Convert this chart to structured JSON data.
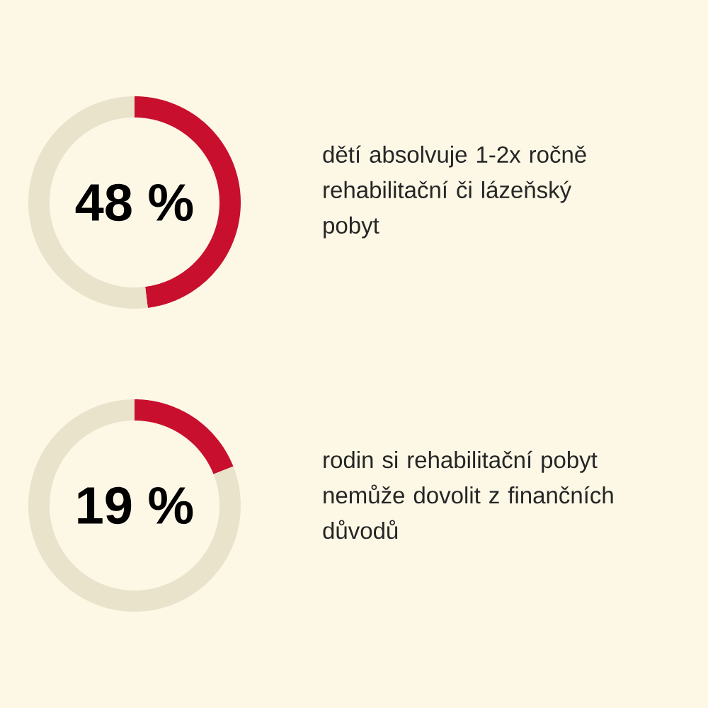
{
  "chart_data": [
    {
      "type": "donut",
      "title": "dětí absolvuje 1-2x ročně rehabilitační či lázeňský pobyt",
      "categories": [
        null,
        null
      ],
      "values": [
        48,
        52
      ],
      "colors": [
        "#c8102e",
        "#e9e3cc"
      ],
      "annotations": [
        "48 %"
      ]
    },
    {
      "type": "donut",
      "title": "rodin si rehabilitační pobyt nemůže dovolit z finančních důvodů",
      "categories": [
        null,
        null
      ],
      "values": [
        19,
        81
      ],
      "colors": [
        "#c8102e",
        "#e9e3cc"
      ],
      "annotations": [
        "19 %"
      ]
    }
  ]
}
